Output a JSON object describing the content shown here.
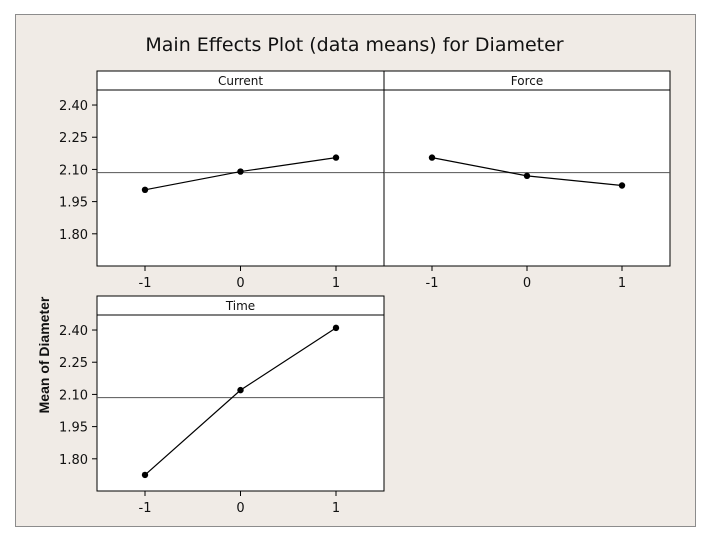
{
  "chart_data": {
    "type": "line",
    "title": "Main Effects Plot (data means) for Diameter",
    "ylabel": "Mean of Diameter",
    "ylim": [
      1.65,
      2.47
    ],
    "yticks": [
      "1.80",
      "1.95",
      "2.10",
      "2.25",
      "2.40"
    ],
    "xticks": [
      "-1",
      "0",
      "1"
    ],
    "reference_line": 2.085,
    "grid": false,
    "panels": [
      {
        "name": "Current",
        "x": [
          -1,
          0,
          1
        ],
        "y": [
          2.005,
          2.09,
          2.155
        ]
      },
      {
        "name": "Force",
        "x": [
          -1,
          0,
          1
        ],
        "y": [
          2.155,
          2.07,
          2.025
        ]
      },
      {
        "name": "Time",
        "x": [
          -1,
          0,
          1
        ],
        "y": [
          1.725,
          2.12,
          2.41
        ]
      }
    ]
  },
  "colors": {
    "background": "#f0ebe6",
    "plot_area": "#ffffff",
    "line": "#000000"
  }
}
